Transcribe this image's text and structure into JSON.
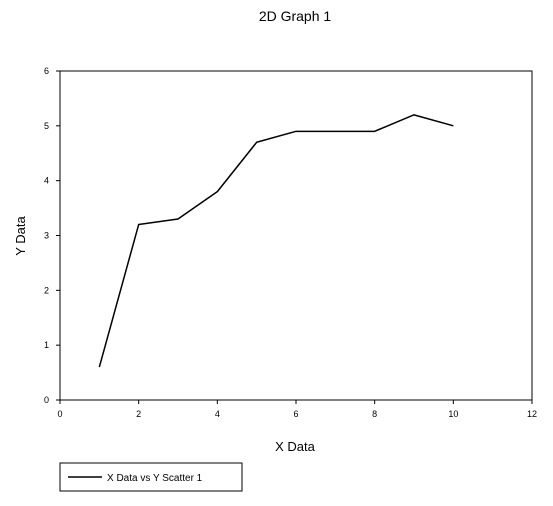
{
  "chart_data": {
    "type": "line",
    "title": "2D Graph 1",
    "xlabel": "X Data",
    "ylabel": "Y Data",
    "xlim": [
      0,
      12
    ],
    "ylim": [
      0,
      6
    ],
    "xticks": [
      "0",
      "2",
      "4",
      "6",
      "8",
      "10",
      "12"
    ],
    "yticks": [
      "0",
      "1",
      "2",
      "3",
      "4",
      "5",
      "6"
    ],
    "grid": false,
    "legend_position": "bottom-left",
    "line_color": "#000000",
    "series": [
      {
        "name": "X Data vs Y Scatter 1",
        "x": [
          1,
          2,
          3,
          4,
          5,
          6,
          7,
          8,
          9,
          10
        ],
        "y": [
          0.6,
          3.2,
          3.3,
          3.8,
          4.7,
          4.9,
          4.9,
          4.9,
          5.2,
          5.0
        ]
      }
    ]
  }
}
